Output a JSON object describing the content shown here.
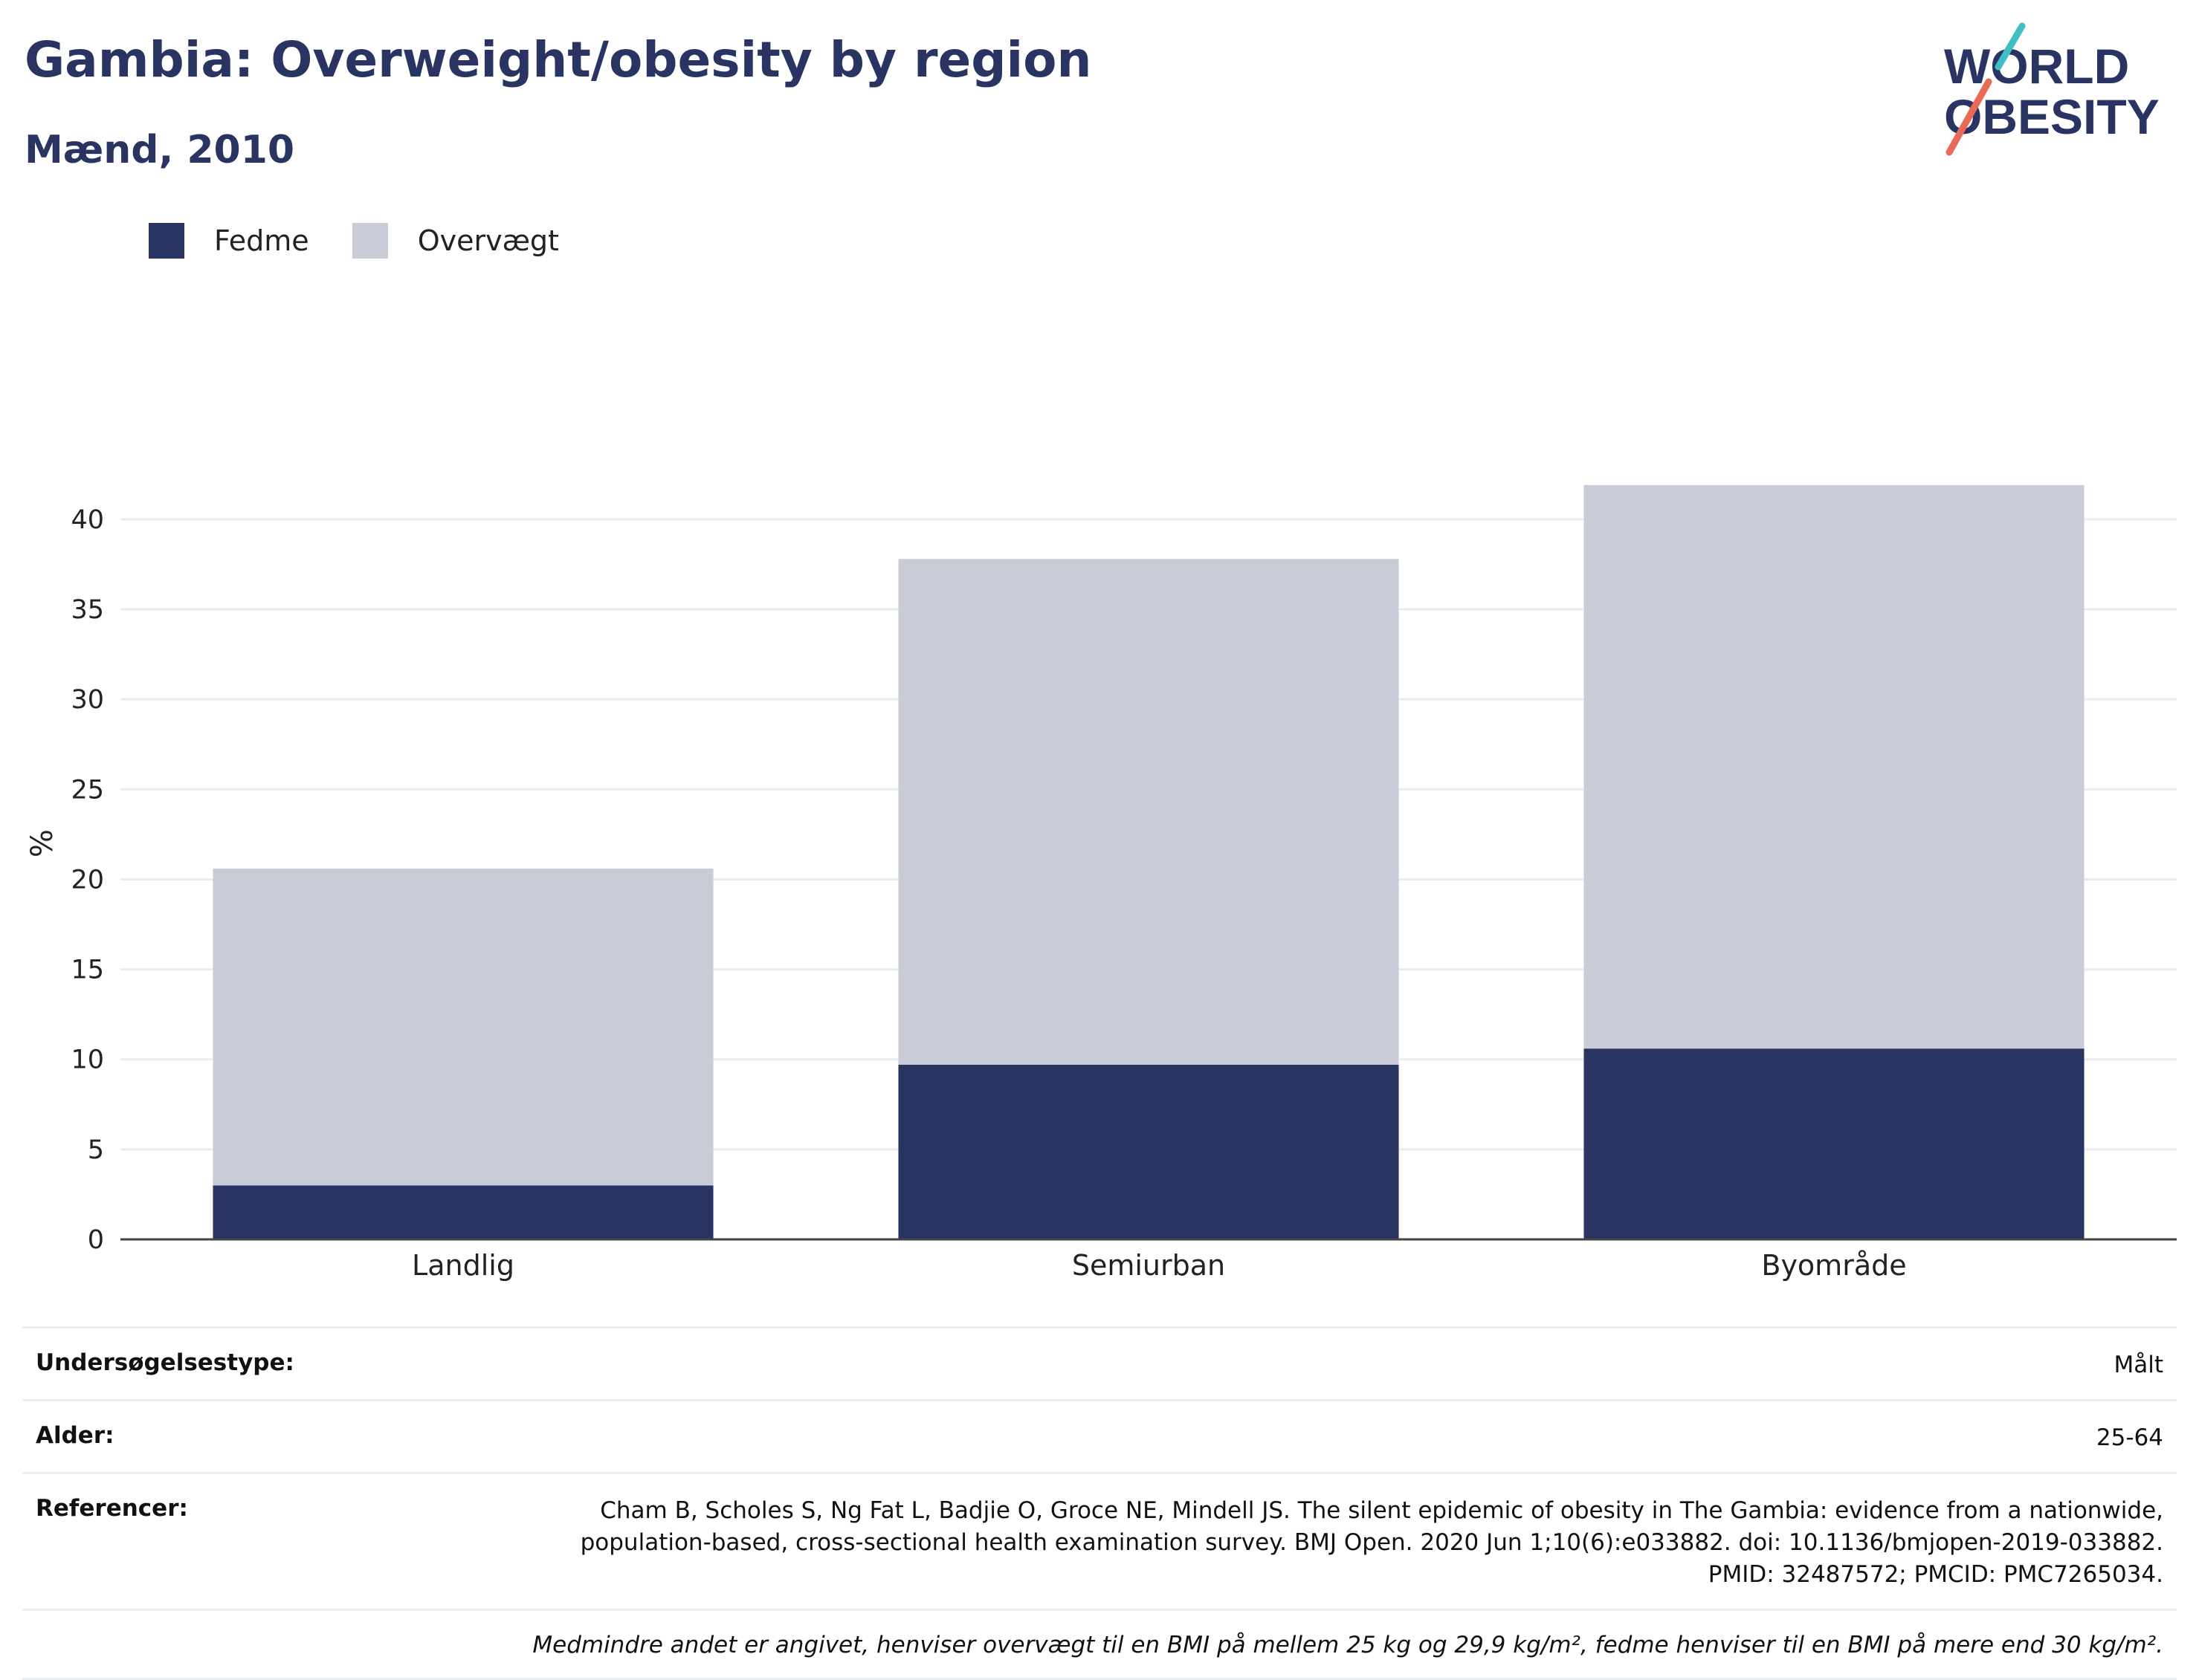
{
  "header": {
    "title": "Gambia: Overweight/obesity by region",
    "subtitle": "Mænd, 2010"
  },
  "logo": {
    "line1": "WORLD",
    "line2": "OBESITY"
  },
  "colors": {
    "obesity": "#2a3462",
    "overweight": "#c9cbd6",
    "text": "#2a3462",
    "accent_red": "#e86a57",
    "accent_teal": "#3fbfc4"
  },
  "chart_data": {
    "type": "bar",
    "stacked": true,
    "categories": [
      "Landlig",
      "Semiurban",
      "Byområde"
    ],
    "series": [
      {
        "name": "Fedme",
        "values": [
          3.0,
          9.7,
          10.6
        ],
        "color": "#2a3462"
      },
      {
        "name": "Overvægt",
        "values": [
          17.6,
          28.1,
          31.3
        ],
        "color": "#c9cbd6"
      }
    ],
    "ylabel": "%",
    "ylim": [
      0,
      44
    ],
    "yticks": [
      0,
      5,
      10,
      15,
      20,
      25,
      30,
      35,
      40
    ],
    "grid": true,
    "legend": "top-left"
  },
  "meta": {
    "survey_label": "Undersøgelsestype:",
    "survey_value": "Målt",
    "age_label": "Alder:",
    "age_value": "25-64",
    "ref_label": "Referencer:",
    "ref_value": "Cham B, Scholes S, Ng Fat L, Badjie O, Groce NE, Mindell JS. The silent epidemic of obesity in The Gambia: evidence from a nationwide, population-based, cross-sectional health examination survey. BMJ Open. 2020 Jun 1;10(6):e033882. doi: 10.1136/bmjopen-2019-033882. PMID: 32487572; PMCID: PMC7265034.",
    "note": "Medmindre andet er angivet, henviser overvægt til en BMI på mellem 25 kg og 29,9 kg/m², fedme henviser til en BMI på mere end 30 kg/m²."
  }
}
